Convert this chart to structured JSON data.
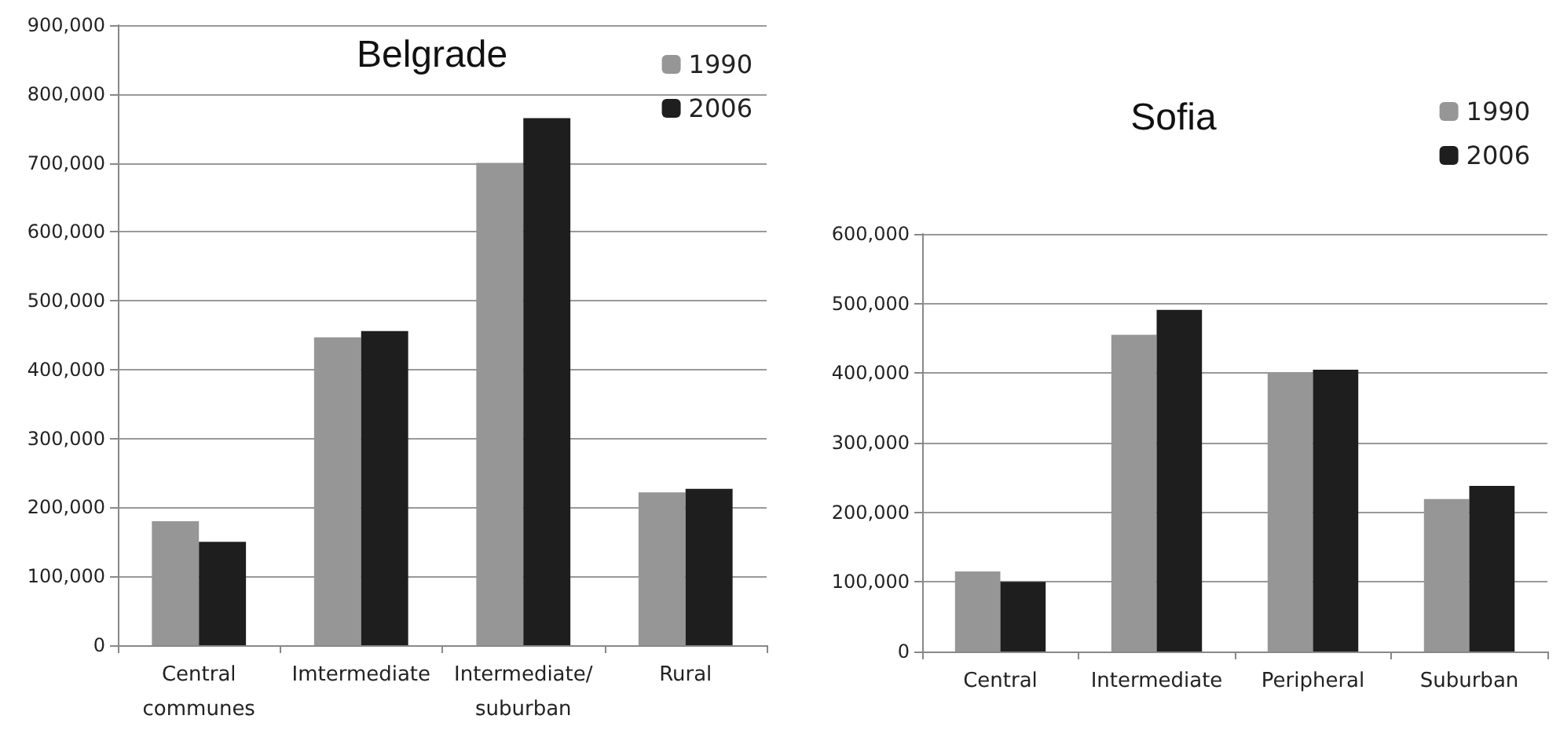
{
  "chart_data": [
    {
      "type": "bar",
      "title": "Belgrade",
      "categories": [
        "Central\ncommunes",
        "Imtermediate",
        "Intermediate/\nsuburban",
        "Rural"
      ],
      "series": [
        {
          "name": "1990",
          "color": "#969696",
          "values": [
            180000,
            447000,
            700000,
            222000
          ]
        },
        {
          "name": "2006",
          "color": "#1e1e1e",
          "values": [
            150000,
            456000,
            765000,
            227000
          ]
        }
      ],
      "ylim": [
        0,
        900000
      ],
      "yticks": [
        0,
        {
          "value": 100000,
          "label": "100,000"
        },
        {
          "value": 200000,
          "label": "200,000"
        },
        {
          "value": 300000,
          "label": "300,000"
        },
        {
          "value": 400000,
          "label": "400,000"
        },
        {
          "value": 500000,
          "label": "500,000"
        },
        {
          "value": 600000,
          "label": "600,000"
        },
        {
          "value": 700000,
          "label": "700,000"
        },
        {
          "value": 800000,
          "label": "800,000"
        },
        {
          "value": 900000,
          "label": "900,000"
        }
      ],
      "grid": "y",
      "legend": "top right"
    },
    {
      "type": "bar",
      "title": "Sofia",
      "categories": [
        "Central",
        "Intermediate",
        "Peripheral",
        "Suburban"
      ],
      "series": [
        {
          "name": "1990",
          "color": "#969696",
          "values": [
            115000,
            455000,
            400000,
            219000
          ]
        },
        {
          "name": "2006",
          "color": "#1e1e1e",
          "values": [
            100000,
            491000,
            405000,
            238000
          ]
        }
      ],
      "ylim": [
        0,
        600000
      ],
      "yticks": [
        0,
        {
          "value": 100000,
          "label": "100,000"
        },
        {
          "value": 200000,
          "label": "200,000"
        },
        {
          "value": 300000,
          "label": "300,000"
        },
        {
          "value": 400000,
          "label": "400,000"
        },
        {
          "value": 500000,
          "label": "500,000"
        },
        {
          "value": 600000,
          "label": "600,000"
        }
      ],
      "grid": "y",
      "legend": "top right"
    }
  ]
}
